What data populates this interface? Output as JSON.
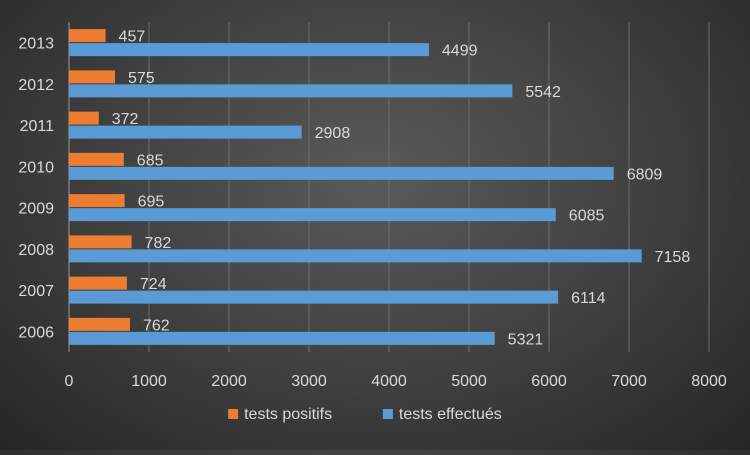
{
  "chart_data": {
    "type": "bar",
    "orientation": "horizontal",
    "categories": [
      "2006",
      "2007",
      "2008",
      "2009",
      "2010",
      "2011",
      "2012",
      "2013"
    ],
    "series": [
      {
        "name": "tests positifs",
        "color": "#ed7d31",
        "values": [
          762,
          724,
          782,
          695,
          685,
          372,
          575,
          457
        ]
      },
      {
        "name": "tests effectués",
        "color": "#5b9bd5",
        "values": [
          5321,
          6114,
          7158,
          6085,
          6809,
          2908,
          5542,
          4499
        ]
      }
    ],
    "xlim": [
      0,
      8000
    ],
    "xticks": [
      "0",
      "1000",
      "2000",
      "3000",
      "4000",
      "5000",
      "6000",
      "7000",
      "8000"
    ],
    "grid": true,
    "legend_position": "bottom",
    "title": "",
    "xlabel": "",
    "ylabel": ""
  }
}
